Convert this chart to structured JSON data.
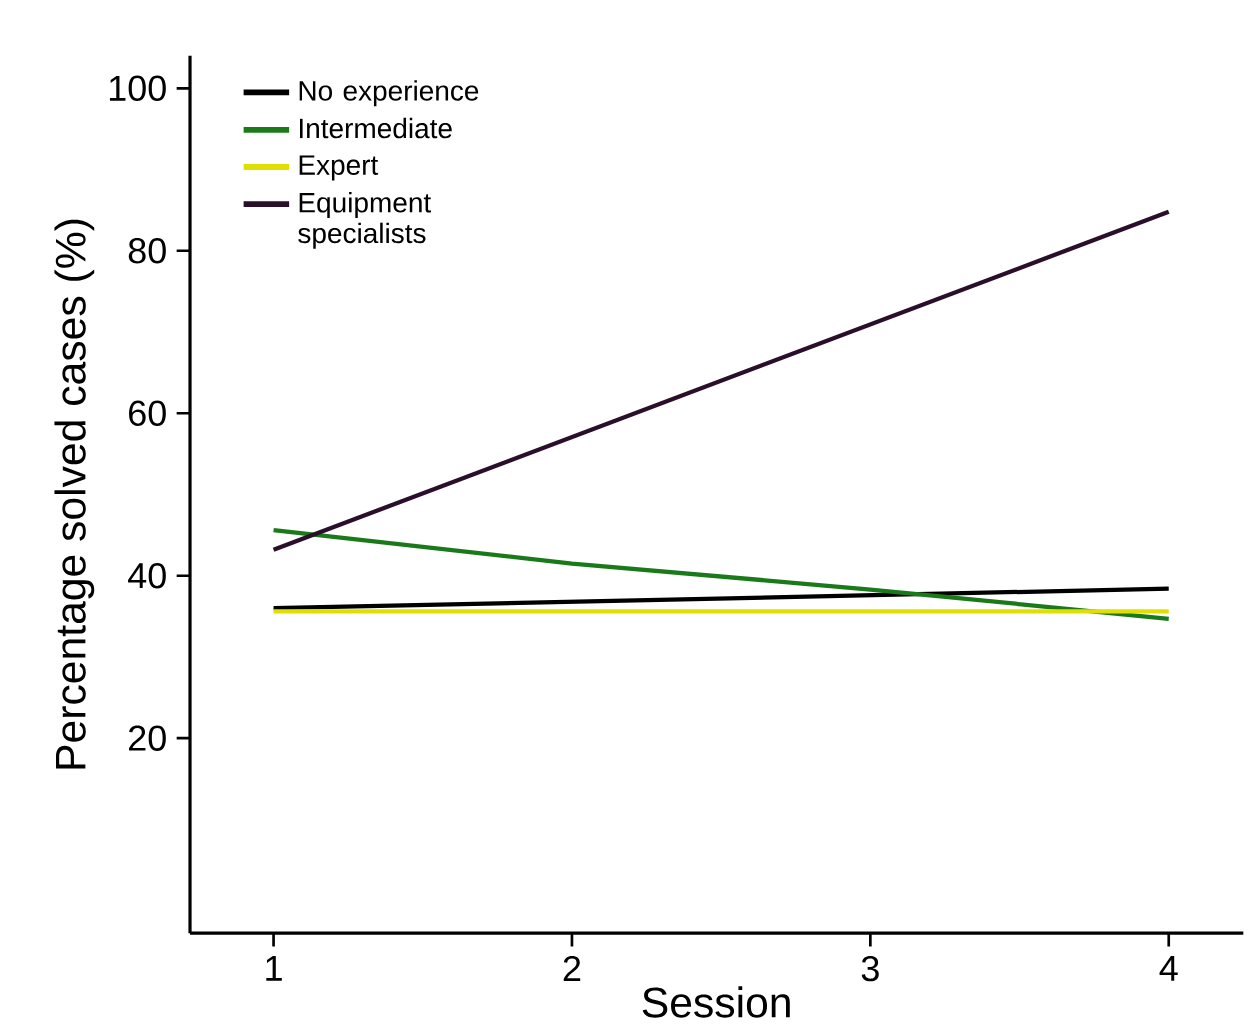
{
  "chart_data": {
    "type": "line",
    "xlabel": "Session",
    "ylabel": "Percentage solved cases (%)",
    "xlim": [
      0.72,
      4.25
    ],
    "xticks": [
      1,
      2,
      3,
      4
    ],
    "ylim": [
      -4,
      104
    ],
    "yticks": [
      20,
      40,
      60,
      80,
      100
    ],
    "legend": "top left",
    "grid": false,
    "marker": "none",
    "line_style": "solid",
    "series": [
      {
        "name": "No experience",
        "color": "#000000",
        "x": [
          1,
          4
        ],
        "values": [
          36.0,
          38.4
        ]
      },
      {
        "name": "Intermediate",
        "color": "#1a7a1a",
        "x": [
          1,
          2,
          3,
          4
        ],
        "values": [
          45.6,
          41.5,
          38.3,
          34.7
        ]
      },
      {
        "name": "Expert",
        "color": "#e0e000",
        "x": [
          1,
          4
        ],
        "values": [
          35.6,
          35.6
        ]
      },
      {
        "name": "Equipment specialists",
        "color": "#2a0f2a",
        "x": [
          1,
          4
        ],
        "values": [
          43.2,
          84.8
        ]
      }
    ]
  }
}
